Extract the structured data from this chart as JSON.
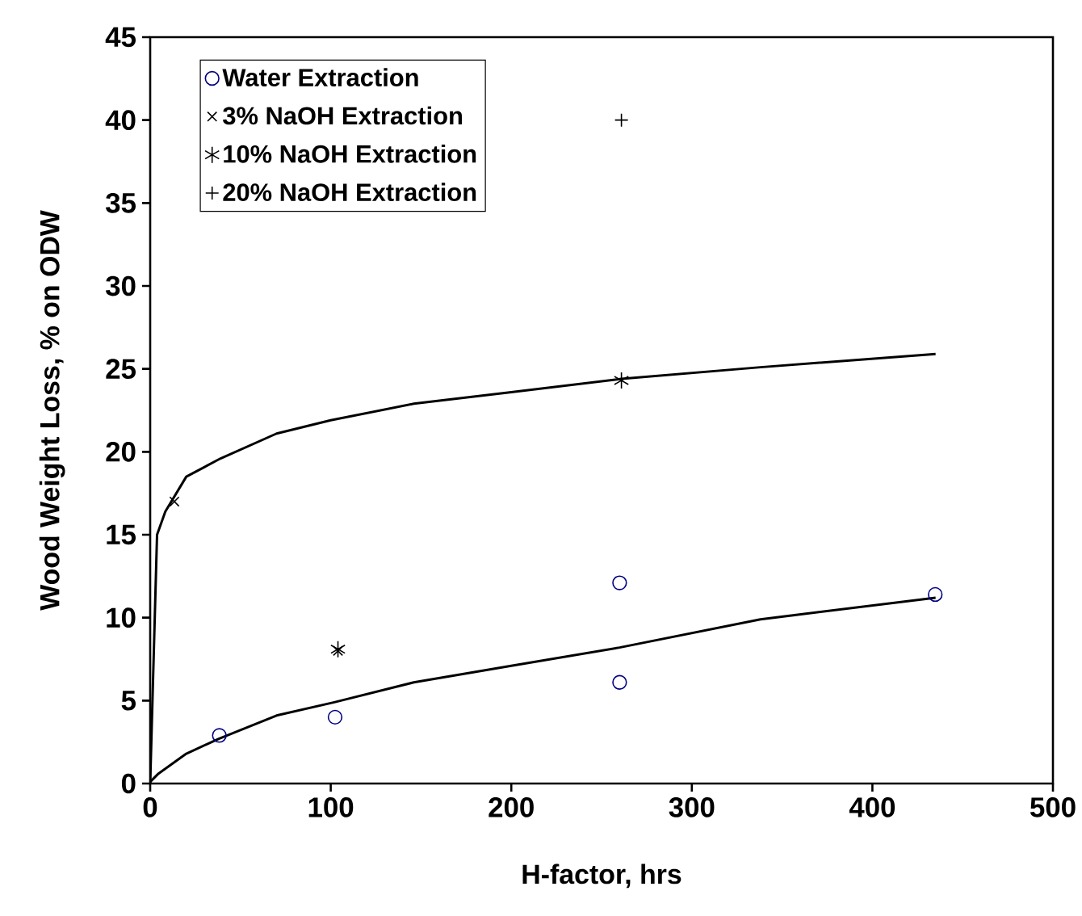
{
  "chart_data": {
    "type": "scatter",
    "xlabel": "H-factor, hrs",
    "ylabel": "Wood Weight Loss, % on ODW",
    "xlim": [
      0,
      500
    ],
    "ylim": [
      0,
      45
    ],
    "xticks": [
      0,
      100,
      200,
      300,
      400,
      500
    ],
    "yticks": [
      0,
      5,
      10,
      15,
      20,
      25,
      30,
      35,
      40,
      45
    ],
    "legend": "top left",
    "grid": false,
    "series": [
      {
        "name": "Water Extraction",
        "marker": "circle",
        "color": "#000080",
        "x": [
          38.3,
          102.4,
          260,
          260,
          434.8
        ],
        "values": [
          2.9,
          4.0,
          12.1,
          6.1,
          11.4
        ]
      },
      {
        "name": "3% NaOH Extraction",
        "marker": "cross",
        "color": "#000000",
        "x": [
          13.4,
          104
        ],
        "values": [
          17.0,
          8.0
        ]
      },
      {
        "name": "10% NaOH Extraction",
        "color": "#000000",
        "x": [
          104,
          261
        ],
        "values": [
          8.1,
          24.3
        ]
      },
      {
        "name": "20% NaOH Extraction",
        "marker": "plus",
        "color": "#000000",
        "x": [
          261
        ],
        "values": [
          40.0
        ]
      },
      {
        "type": "line",
        "marker": "none",
        "line_style": "solid",
        "color": "#000000",
        "x": [
          0,
          3.8,
          8.4,
          20,
          39,
          70,
          100,
          146,
          200,
          261,
          338,
          435
        ],
        "values": [
          0,
          15.0,
          16.4,
          18.5,
          19.6,
          21.1,
          21.9,
          22.9,
          23.6,
          24.4,
          25.1,
          25.9
        ]
      },
      {
        "type": "line",
        "marker": "none",
        "line_style": "solid",
        "color": "#000000",
        "x": [
          0,
          4.6,
          20,
          38,
          70,
          102,
          146,
          200,
          260,
          338,
          435
        ],
        "values": [
          0.1,
          0.6,
          1.8,
          2.7,
          4.1,
          4.9,
          6.1,
          7.1,
          8.2,
          9.9,
          11.2
        ]
      }
    ]
  }
}
